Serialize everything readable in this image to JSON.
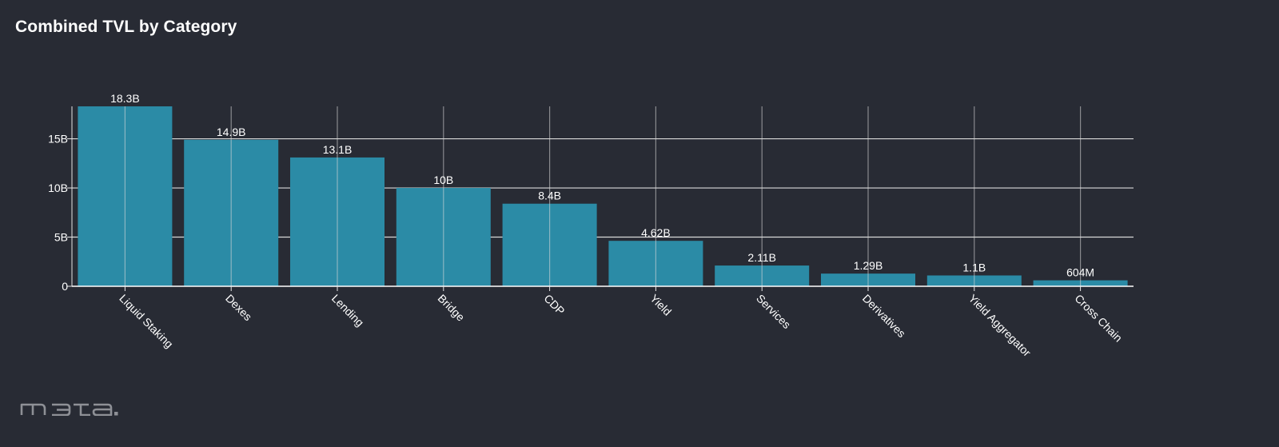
{
  "chart_data": {
    "type": "bar",
    "title": "Combined TVL by Category",
    "xlabel": "",
    "ylabel": "",
    "categories": [
      "Liquid Staking",
      "Dexes",
      "Lending",
      "Bridge",
      "CDP",
      "Yield",
      "Services",
      "Derivatives",
      "Yield Aggregator",
      "Cross Chain"
    ],
    "values": [
      18.3,
      14.9,
      13.1,
      10.0,
      8.4,
      4.62,
      2.11,
      1.29,
      1.1,
      0.604
    ],
    "value_labels": [
      "18.3B",
      "14.9B",
      "13.1B",
      "10B",
      "8.4B",
      "4.62B",
      "2.11B",
      "1.29B",
      "1.1B",
      "604M"
    ],
    "y_ticks": [
      0,
      5,
      10,
      15
    ],
    "y_tick_labels": [
      "0",
      "5B",
      "10B",
      "15B"
    ],
    "ylim": [
      0,
      18.3
    ],
    "grid": true,
    "bar_color": "#2b8ba6",
    "grid_color": "#d9d9d9",
    "background": "#282b34"
  },
  "logo": {
    "icon": "meta-logo-icon",
    "color": "#8e9096"
  }
}
